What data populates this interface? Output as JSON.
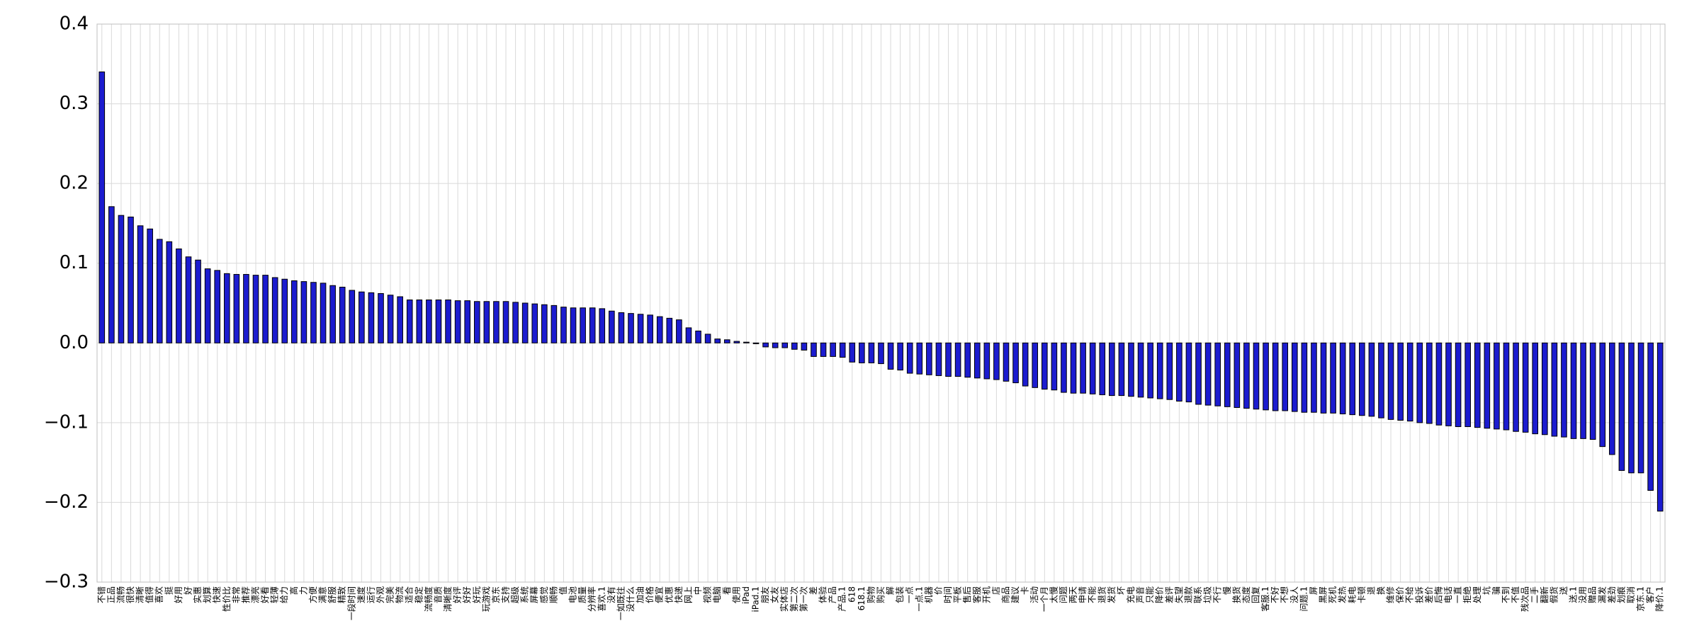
{
  "chart_data": {
    "type": "bar",
    "categories": [
      "不错",
      "正品",
      "流畅",
      "很快",
      "清晰",
      "值得",
      "喜欢",
      "挺",
      "好用",
      "好",
      "实惠",
      "划算",
      "快速",
      "性价比",
      "非常",
      "推荐",
      "漂亮",
      "好看",
      "轻薄",
      "给力",
      "高",
      "力",
      "方便",
      "满意",
      "舒服",
      "精致",
      "一段时间",
      "速度",
      "运行",
      "外观",
      "完美",
      "物流",
      "适合",
      "稳定",
      "流畅度",
      "音质",
      "清晰度",
      "好评",
      "好好",
      "好玩",
      "玩游戏",
      "京东",
      "支持",
      "超级",
      "系统",
      "屏幕",
      "感觉",
      "顺畅",
      "值",
      "电池",
      "质量",
      "分辨率",
      "喜欢.1",
      "没有",
      "一如既往",
      "没什么",
      "加油",
      "价格",
      "便宜",
      "优惠",
      "快递",
      "网上",
      "中",
      "视频",
      "电脑",
      "看",
      "使用",
      "iPad",
      "iPad.1",
      "朋友",
      "女友",
      "实体店",
      "第二次",
      "第一次",
      "差",
      "体验",
      "产品",
      "产品.1",
      "618",
      "618.1",
      "购物",
      "购买",
      "解",
      "包装",
      "一点",
      "一点.1",
      "机器",
      "价",
      "时间",
      "平板",
      "售后",
      "客服",
      "开机",
      "店",
      "商品",
      "建议",
      "卡",
      "活动",
      "一个月",
      "太慢",
      "问题",
      "两天",
      "申请",
      "不能",
      "退货",
      "发货",
      "坏",
      "充电",
      "声音",
      "只能",
      "降价",
      "差评",
      "失望",
      "退款",
      "联系",
      "垃圾",
      "不行",
      "慢",
      "换货",
      "态度",
      "回复",
      "客服.1",
      "不好",
      "不想",
      "没人",
      "问题.1",
      "屏",
      "黑屏",
      "死机",
      "发热",
      "耗电",
      "卡顿",
      "退",
      "换",
      "维修",
      "保价",
      "不给",
      "投诉",
      "差价",
      "后悔",
      "电话",
      "一直",
      "拒绝",
      "处理",
      "坑",
      "骗",
      "不到",
      "不值",
      "残次品",
      "二手",
      "翻新",
      "假货",
      "送",
      "送.1",
      "没用",
      "赠品",
      "漏发",
      "差劲",
      "划痕",
      "取消",
      "京东.1",
      "客户",
      "降价.1"
    ],
    "values": [
      0.34,
      0.171,
      0.16,
      0.158,
      0.147,
      0.143,
      0.13,
      0.127,
      0.118,
      0.108,
      0.104,
      0.093,
      0.091,
      0.087,
      0.086,
      0.086,
      0.085,
      0.085,
      0.082,
      0.08,
      0.078,
      0.077,
      0.076,
      0.075,
      0.072,
      0.07,
      0.066,
      0.064,
      0.063,
      0.062,
      0.06,
      0.058,
      0.054,
      0.054,
      0.054,
      0.054,
      0.054,
      0.053,
      0.053,
      0.052,
      0.052,
      0.052,
      0.052,
      0.051,
      0.05,
      0.049,
      0.048,
      0.047,
      0.045,
      0.044,
      0.044,
      0.044,
      0.043,
      0.04,
      0.038,
      0.037,
      0.036,
      0.035,
      0.033,
      0.031,
      0.029,
      0.019,
      0.015,
      0.011,
      0.005,
      0.004,
      0.002,
      0.001,
      -0.001,
      -0.005,
      -0.006,
      -0.006,
      -0.008,
      -0.009,
      -0.017,
      -0.017,
      -0.017,
      -0.018,
      -0.024,
      -0.025,
      -0.025,
      -0.026,
      -0.033,
      -0.034,
      -0.038,
      -0.039,
      -0.04,
      -0.041,
      -0.042,
      -0.042,
      -0.043,
      -0.044,
      -0.045,
      -0.046,
      -0.048,
      -0.05,
      -0.054,
      -0.056,
      -0.058,
      -0.059,
      -0.062,
      -0.063,
      -0.063,
      -0.064,
      -0.065,
      -0.066,
      -0.066,
      -0.067,
      -0.068,
      -0.069,
      -0.07,
      -0.071,
      -0.073,
      -0.074,
      -0.077,
      -0.078,
      -0.079,
      -0.08,
      -0.081,
      -0.082,
      -0.083,
      -0.084,
      -0.085,
      -0.085,
      -0.086,
      -0.087,
      -0.087,
      -0.088,
      -0.088,
      -0.089,
      -0.09,
      -0.091,
      -0.092,
      -0.094,
      -0.096,
      -0.097,
      -0.098,
      -0.1,
      -0.101,
      -0.103,
      -0.104,
      -0.105,
      -0.105,
      -0.106,
      -0.107,
      -0.108,
      -0.109,
      -0.111,
      -0.112,
      -0.114,
      -0.115,
      -0.117,
      -0.118,
      -0.12,
      -0.12,
      -0.121,
      -0.13,
      -0.14,
      -0.16,
      -0.163,
      -0.163,
      -0.185,
      -0.211
    ],
    "color": "#1c1ccf",
    "ylim": [
      -0.3,
      0.4
    ],
    "yticks": [
      {
        "value": -0.3,
        "label": "−0.3"
      },
      {
        "value": -0.2,
        "label": "−0.2"
      },
      {
        "value": -0.1,
        "label": "−0.1"
      },
      {
        "value": 0,
        "label": "0.0"
      },
      {
        "value": 0.1,
        "label": "0.1"
      },
      {
        "value": 0.2,
        "label": "0.2"
      },
      {
        "value": 0.3,
        "label": "0.3"
      },
      {
        "value": 0.4,
        "label": "0.4"
      }
    ],
    "grid": true
  }
}
